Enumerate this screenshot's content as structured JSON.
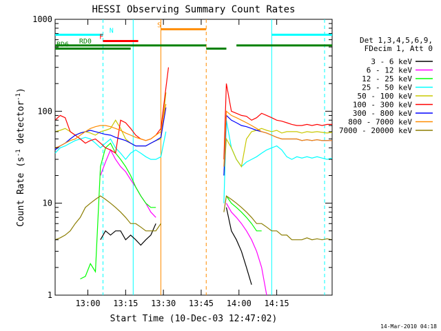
{
  "chart_data": {
    "type": "line",
    "title": "HESSI Observing Summary Count Rates",
    "xlabel": "Start Time (10-Dec-03 12:47:02)",
    "ylabel_main": "Count Rate (s",
    "ylabel_sup1": "-1",
    "ylabel_mid": " detector",
    "ylabel_sup2": "-1",
    "ylabel_end": ")",
    "footer": "14-Mar-2010 04:18",
    "yscale": "log",
    "xlim_min": [
      0,
      110
    ],
    "ylim": [
      1,
      1000
    ],
    "x_ticks": [
      {
        "value": 13,
        "label": "13:00"
      },
      {
        "value": 28,
        "label": "13:15"
      },
      {
        "value": 43,
        "label": "13:30"
      },
      {
        "value": 58,
        "label": "13:45"
      },
      {
        "value": 73,
        "label": "14:00"
      },
      {
        "value": 88,
        "label": "14:15"
      }
    ],
    "y_ticks": [
      {
        "value": 1,
        "label": "1"
      },
      {
        "value": 10,
        "label": "10"
      },
      {
        "value": 100,
        "label": "100"
      },
      {
        "value": 1000,
        "label": "1000"
      }
    ],
    "legend_header": [
      "Det 1,3,4,5,6,9,",
      "FDecim 1, Att 0"
    ],
    "series": [
      {
        "name": "3 - 6 keV",
        "color": "#000000",
        "x": [
          18,
          20,
          22,
          24,
          26,
          28,
          30,
          32,
          34,
          36,
          38,
          40,
          68,
          70,
          72,
          74,
          76,
          78
        ],
        "y": [
          4,
          5,
          4.5,
          5,
          5,
          4,
          4.5,
          4,
          3.5,
          4,
          4.5,
          6,
          9,
          5,
          4,
          3,
          2,
          1.3
        ]
      },
      {
        "name": "6 - 12 keV",
        "color": "#ff00ff",
        "x": [
          18,
          20,
          22,
          24,
          26,
          28,
          30,
          32,
          34,
          36,
          38,
          40,
          68,
          70,
          72,
          74,
          76,
          78,
          80,
          82,
          84
        ],
        "y": [
          20,
          28,
          38,
          30,
          25,
          22,
          18,
          15,
          12,
          10,
          8,
          7,
          10,
          8,
          7,
          6,
          5,
          4,
          3,
          2,
          1
        ]
      },
      {
        "name": "12 - 25 keV",
        "color": "#00ff00",
        "x": [
          10,
          12,
          14,
          16,
          18,
          20,
          22,
          24,
          26,
          28,
          30,
          32,
          34,
          36,
          38,
          40,
          68,
          70,
          72,
          74,
          76,
          78,
          80,
          82
        ],
        "y": [
          1.5,
          1.6,
          2.2,
          1.8,
          25,
          40,
          45,
          35,
          30,
          25,
          20,
          15,
          12,
          10,
          9,
          9,
          12,
          10,
          9,
          8,
          7,
          6,
          5,
          5
        ]
      },
      {
        "name": "25 - 50 keV",
        "color": "#00ffff",
        "x": [
          0,
          2,
          4,
          6,
          8,
          10,
          12,
          14,
          16,
          18,
          20,
          22,
          24,
          26,
          28,
          30,
          32,
          34,
          36,
          38,
          40,
          42,
          44,
          67,
          68,
          70,
          72,
          74,
          76,
          78,
          80,
          82,
          84,
          86,
          88,
          90,
          92,
          94,
          96,
          98,
          100,
          102,
          104,
          106,
          108,
          110
        ],
        "y": [
          35,
          40,
          42,
          45,
          48,
          50,
          52,
          50,
          45,
          40,
          45,
          50,
          40,
          35,
          30,
          35,
          38,
          35,
          32,
          30,
          30,
          32,
          60,
          10,
          80,
          40,
          30,
          25,
          28,
          30,
          32,
          35,
          38,
          40,
          42,
          38,
          32,
          30,
          32,
          31,
          32,
          31,
          32,
          31,
          30,
          31
        ]
      },
      {
        "name": "50 - 100 keV",
        "color": "#c8c800",
        "x": [
          0,
          2,
          4,
          6,
          8,
          10,
          12,
          14,
          16,
          18,
          20,
          22,
          24,
          26,
          28,
          30,
          32,
          34,
          36,
          38,
          40,
          42,
          44,
          67,
          68,
          70,
          72,
          74,
          76,
          78,
          80,
          82,
          84,
          86,
          88,
          90,
          92,
          94,
          96,
          98,
          100,
          102,
          104,
          106,
          108,
          110
        ],
        "y": [
          60,
          62,
          65,
          60,
          55,
          58,
          60,
          58,
          55,
          60,
          62,
          65,
          80,
          65,
          50,
          45,
          42,
          42,
          42,
          45,
          48,
          50,
          160,
          20,
          50,
          40,
          30,
          25,
          50,
          60,
          62,
          65,
          62,
          60,
          62,
          58,
          60,
          60,
          60,
          58,
          60,
          59,
          60,
          59,
          58,
          59
        ]
      },
      {
        "name": "100 - 300 keV",
        "color": "#ff0000",
        "x": [
          0,
          2,
          4,
          6,
          8,
          10,
          12,
          14,
          16,
          18,
          20,
          22,
          24,
          26,
          28,
          30,
          32,
          34,
          36,
          38,
          40,
          42,
          44,
          45,
          67,
          68,
          70,
          72,
          74,
          76,
          78,
          80,
          82,
          84,
          86,
          88,
          90,
          92,
          94,
          96,
          98,
          100,
          102,
          104,
          106,
          108,
          110
        ],
        "y": [
          80,
          90,
          85,
          60,
          55,
          50,
          45,
          48,
          50,
          45,
          40,
          38,
          35,
          80,
          75,
          65,
          55,
          50,
          48,
          50,
          55,
          65,
          180,
          300,
          30,
          200,
          100,
          95,
          90,
          88,
          80,
          85,
          95,
          90,
          85,
          80,
          78,
          75,
          72,
          70,
          70,
          72,
          70,
          72,
          70,
          72,
          72
        ]
      },
      {
        "name": "300 - 800 keV",
        "color": "#0000ff",
        "x": [
          0,
          2,
          4,
          6,
          8,
          10,
          12,
          14,
          16,
          18,
          20,
          22,
          24,
          26,
          28,
          30,
          32,
          34,
          36,
          38,
          40,
          42,
          44,
          67,
          68,
          70,
          72,
          74,
          76,
          78,
          80,
          82,
          84,
          86,
          88,
          90,
          92,
          94,
          96,
          98,
          100,
          102,
          104,
          106,
          108,
          110
        ],
        "y": [
          38,
          42,
          45,
          50,
          55,
          58,
          60,
          62,
          60,
          58,
          56,
          55,
          52,
          50,
          48,
          45,
          42,
          42,
          42,
          45,
          48,
          52,
          110,
          20,
          90,
          80,
          75,
          70,
          68,
          65,
          62,
          60,
          58,
          55,
          52,
          50,
          50,
          50,
          50,
          48,
          49,
          48,
          49,
          48,
          48,
          48
        ]
      },
      {
        "name": "800 - 7000 keV",
        "color": "#ff8c00",
        "x": [
          0,
          2,
          4,
          6,
          8,
          10,
          12,
          14,
          16,
          18,
          20,
          22,
          24,
          26,
          28,
          30,
          32,
          34,
          36,
          38,
          40,
          42,
          44,
          67,
          68,
          70,
          72,
          74,
          76,
          78,
          80,
          82,
          84,
          86,
          88,
          90,
          92,
          94,
          96,
          98,
          100,
          102,
          104,
          106,
          108,
          110
        ],
        "y": [
          40,
          42,
          45,
          48,
          50,
          55,
          60,
          65,
          68,
          70,
          70,
          68,
          65,
          62,
          58,
          55,
          52,
          50,
          48,
          50,
          55,
          60,
          120,
          25,
          100,
          90,
          85,
          80,
          75,
          70,
          65,
          60,
          58,
          55,
          52,
          50,
          50,
          50,
          50,
          48,
          49,
          48,
          49,
          48,
          48,
          48
        ]
      },
      {
        "name": "7000 - 20000 keV",
        "color": "#8b7d00",
        "x": [
          0,
          2,
          4,
          6,
          8,
          10,
          12,
          14,
          16,
          18,
          20,
          22,
          24,
          26,
          28,
          30,
          32,
          34,
          36,
          38,
          40,
          42,
          67,
          68,
          70,
          72,
          74,
          76,
          78,
          80,
          82,
          84,
          86,
          88,
          90,
          92,
          94,
          96,
          98,
          100,
          102,
          104,
          106,
          108,
          110
        ],
        "y": [
          4,
          4.2,
          4.5,
          5,
          6,
          7,
          9,
          10,
          11,
          12,
          11,
          10,
          9,
          8,
          7,
          6,
          6,
          5.5,
          5,
          5,
          5,
          6,
          8,
          12,
          11,
          10,
          9,
          8,
          7,
          6,
          6,
          5.5,
          5,
          5,
          4.5,
          4.5,
          4,
          4,
          4,
          4.2,
          4,
          4.1,
          4,
          4.1,
          4
        ]
      }
    ],
    "flag_bars": [
      {
        "label": "N",
        "color": "#00ffff",
        "y_level": 680,
        "segments": [
          [
            0,
            19
          ],
          [
            86,
            110
          ]
        ],
        "label_x": 21
      },
      {
        "label": "F",
        "color": "#ff0000",
        "y_level": 580,
        "segments": [
          [
            19,
            33
          ]
        ],
        "label_x": 17
      },
      {
        "label": "S",
        "color": "#ff8c00",
        "y_level": 780,
        "segments": [
          [
            42,
            60
          ]
        ],
        "label_x": 40
      },
      {
        "label": "RD0",
        "color": "#008000",
        "y_level": 520,
        "segments": [
          [
            0,
            42
          ],
          [
            42,
            60
          ],
          [
            72,
            110
          ]
        ],
        "label_x": 9
      },
      {
        "label": "BD6",
        "color": "#008000",
        "y_level": 480,
        "segments": [
          [
            0,
            30
          ],
          [
            60,
            68
          ]
        ],
        "label_x": 0
      }
    ],
    "vertical_lines": [
      {
        "x": 19,
        "color": "#00ffff",
        "style": "dashed"
      },
      {
        "x": 31,
        "color": "#00ffff",
        "style": "solid"
      },
      {
        "x": 42,
        "color": "#ff8c00",
        "style": "solid"
      },
      {
        "x": 60,
        "color": "#ff8c00",
        "style": "dashed"
      },
      {
        "x": 86,
        "color": "#00ffff",
        "style": "solid"
      },
      {
        "x": 107,
        "color": "#00ffff",
        "style": "dashed"
      }
    ]
  }
}
